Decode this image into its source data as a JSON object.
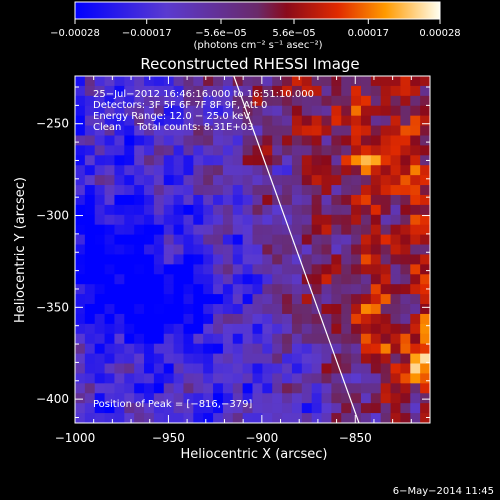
{
  "chart_data": {
    "type": "heatmap",
    "title": "Reconstructed RHESSI Image",
    "xlabel": "Heliocentric X (arcsec)",
    "ylabel": "Heliocentric Y (arcsec)",
    "xlim": [
      -1000,
      -810
    ],
    "ylim": [
      -413,
      -224
    ],
    "x_ticks": [
      -1000,
      -950,
      -900,
      -850
    ],
    "x_tick_labels": [
      "−1000",
      "−950",
      "−900",
      "−850"
    ],
    "y_ticks": [
      -250,
      -300,
      -350,
      -400
    ],
    "y_tick_labels": [
      "−250",
      "−300",
      "−350",
      "−400"
    ],
    "colorbar": {
      "ticks": [
        -0.00028,
        -0.00017,
        -5.6e-05,
        5.6e-05,
        0.00017,
        0.00028
      ],
      "tick_labels": [
        "−0.00028",
        "−0.00017",
        "−5.6e−05",
        "5.6e−05",
        "0.00017",
        "0.00028"
      ],
      "unit_label": "(photons cm⁻² s⁻¹ asec⁻²)",
      "range": [
        -0.00028,
        0.00028
      ]
    },
    "info_lines": [
      "25−Jul−2012 16:46:16.000 to 16:51:10.000",
      "Detectors: 3F 5F 6F 7F 8F 9F, Att 0",
      "Energy Range: 12.0 − 25.0 keV",
      "Clean     Total counts: 8.31E+03"
    ],
    "peak_label": "Position of Peak = [−816,−379]",
    "peak_position": [
      -816,
      -379
    ],
    "limb_line": [
      [
        -915,
        -224
      ],
      [
        -848,
        -413
      ]
    ],
    "grid": false
  },
  "footer": {
    "date": "6−May−2014 11:45"
  }
}
